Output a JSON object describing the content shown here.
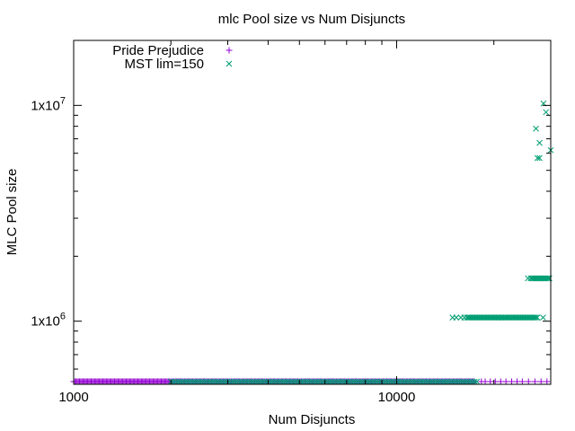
{
  "chart_data": {
    "type": "scatter",
    "title": "mlc Pool size vs Num Disjuncts",
    "xlabel": "Num Disjuncts",
    "ylabel": "MLC Pool size",
    "x_scale": "log",
    "y_scale": "log",
    "xlim": [
      1000,
      30000
    ],
    "ylim": [
      510000,
      20000000
    ],
    "x_tick_labels": [
      "1000",
      "10000"
    ],
    "y_tick_labels": [
      {
        "base": "1x10",
        "exp": "6"
      },
      {
        "base": "1x10",
        "exp": "7"
      }
    ],
    "grid": false,
    "legend_position": "top-left",
    "series": [
      {
        "name": "Pride Prejudice",
        "marker": "+",
        "color": "#9400d3",
        "y_level": 525000,
        "x_min": 1000,
        "x_max": 30000,
        "sparse_x": [
          18300,
          18800,
          19500,
          20200,
          21000,
          21800,
          22700,
          23600,
          24500,
          25600,
          26800,
          28000,
          29200
        ]
      },
      {
        "name": "MST lim=150",
        "marker": "x",
        "color": "#009e73",
        "low_band": {
          "y": 525000,
          "x_min": 2000,
          "x_max": 18000
        },
        "mid_band": {
          "y": 1040000,
          "x_min": 14800,
          "x_max": 27500
        },
        "mid_band_sparse_x": [
          14900,
          15300,
          15800,
          16200
        ],
        "high_band": {
          "y": 1580000,
          "x_min": 26000,
          "x_max": 30000
        },
        "points": [
          {
            "x": 27000,
            "y": 7800000
          },
          {
            "x": 28500,
            "y": 10200000
          },
          {
            "x": 29000,
            "y": 9300000
          },
          {
            "x": 27700,
            "y": 6700000
          },
          {
            "x": 27300,
            "y": 5700000
          },
          {
            "x": 27700,
            "y": 5700000
          },
          {
            "x": 30000,
            "y": 6200000
          },
          {
            "x": 28400,
            "y": 1040000
          },
          {
            "x": 25500,
            "y": 1580000
          }
        ]
      }
    ]
  }
}
